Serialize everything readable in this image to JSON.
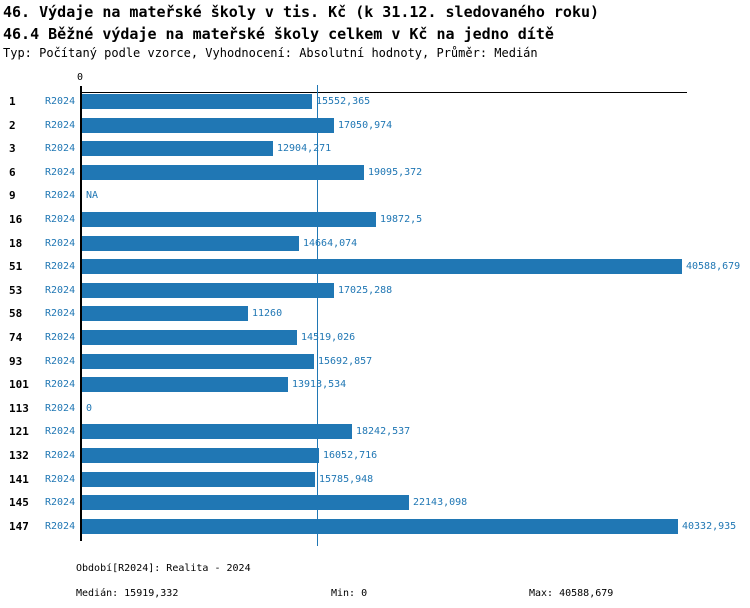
{
  "header": {
    "title1": "46. Výdaje na mateřské školy v tis. Kč (k 31.12. sledovaného roku)",
    "title2": "46.4 Běžné výdaje na mateřské školy celkem v Kč na jedno dítě",
    "subtitle": "Typ: Počítaný podle vzorce, Vyhodnocení: Absolutní hodnoty, Průměr: Medián"
  },
  "colors": {
    "accent": "#2077b4",
    "axis": "#000000",
    "background": "#ffffff"
  },
  "chart_data": {
    "type": "bar",
    "orientation": "horizontal",
    "title": "46.4 Běžné výdaje na mateřské školy celkem v Kč na jedno dítě",
    "xlabel": "",
    "ylabel": "",
    "xlim": [
      0,
      40588.679
    ],
    "x_zero_tick_label": "0",
    "grid": "median-line-only",
    "legend_position": "none",
    "median_value": 15919.332,
    "rows": [
      {
        "id": "1",
        "period": "R2024",
        "value": 15552.365,
        "label": "15552,365"
      },
      {
        "id": "2",
        "period": "R2024",
        "value": 17050.974,
        "label": "17050,974"
      },
      {
        "id": "3",
        "period": "R2024",
        "value": 12904.271,
        "label": "12904,271"
      },
      {
        "id": "6",
        "period": "R2024",
        "value": 19095.372,
        "label": "19095,372"
      },
      {
        "id": "9",
        "period": "R2024",
        "value": null,
        "label": "NA"
      },
      {
        "id": "16",
        "period": "R2024",
        "value": 19872.5,
        "label": "19872,5"
      },
      {
        "id": "18",
        "period": "R2024",
        "value": 14664.074,
        "label": "14664,074"
      },
      {
        "id": "51",
        "period": "R2024",
        "value": 40588.679,
        "label": "40588,679"
      },
      {
        "id": "53",
        "period": "R2024",
        "value": 17025.288,
        "label": "17025,288"
      },
      {
        "id": "58",
        "period": "R2024",
        "value": 11260,
        "label": "11260"
      },
      {
        "id": "74",
        "period": "R2024",
        "value": 14519.026,
        "label": "14519,026"
      },
      {
        "id": "93",
        "period": "R2024",
        "value": 15692.857,
        "label": "15692,857"
      },
      {
        "id": "101",
        "period": "R2024",
        "value": 13913.534,
        "label": "13913,534"
      },
      {
        "id": "113",
        "period": "R2024",
        "value": 0,
        "label": "0"
      },
      {
        "id": "121",
        "period": "R2024",
        "value": 18242.537,
        "label": "18242,537"
      },
      {
        "id": "132",
        "period": "R2024",
        "value": 16052.716,
        "label": "16052,716"
      },
      {
        "id": "141",
        "period": "R2024",
        "value": 15785.948,
        "label": "15785,948"
      },
      {
        "id": "145",
        "period": "R2024",
        "value": 22143.098,
        "label": "22143,098"
      },
      {
        "id": "147",
        "period": "R2024",
        "value": 40332.935,
        "label": "40332,935"
      }
    ]
  },
  "footer": {
    "period": "Období[R2024]: Realita - 2024",
    "median": "Medián: 15919,332",
    "min": "Min: 0",
    "max": "Max: 40588,679"
  }
}
